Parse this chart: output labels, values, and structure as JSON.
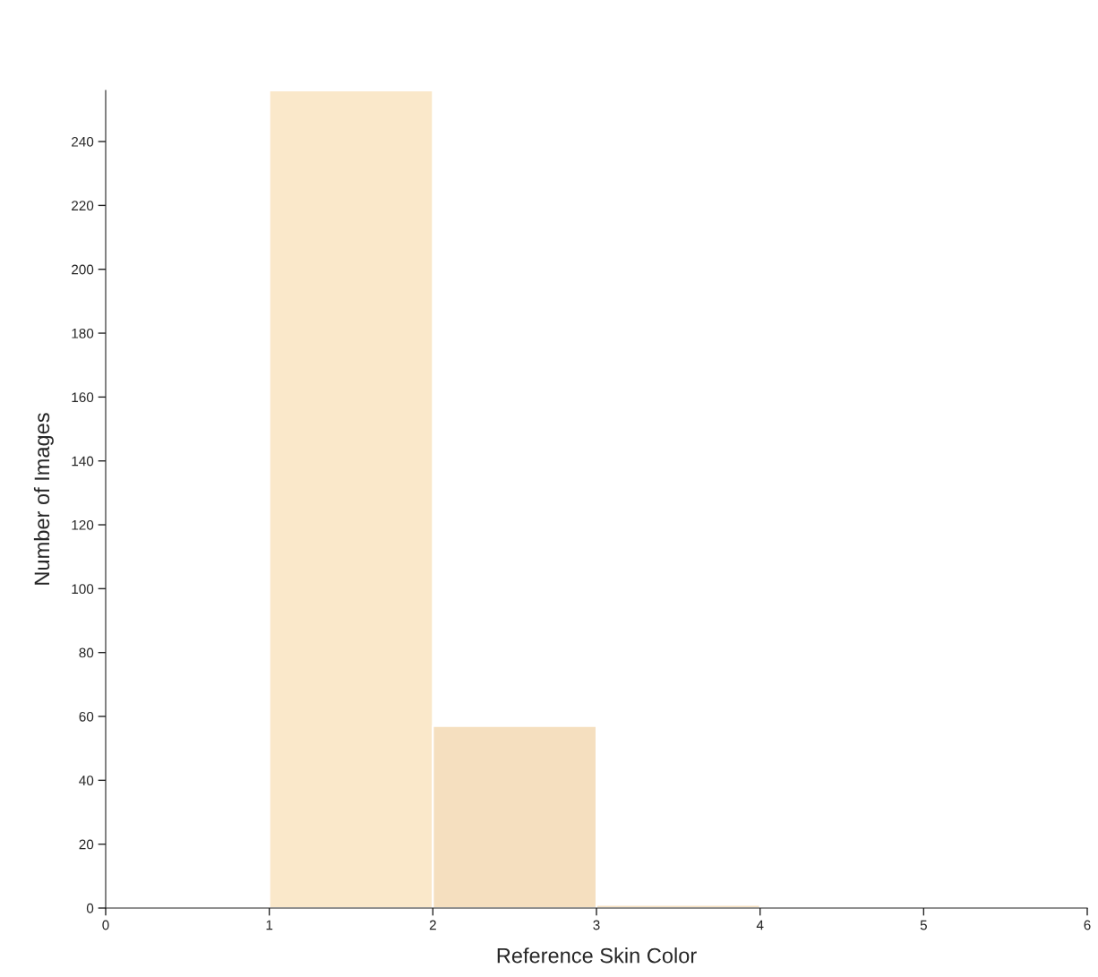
{
  "chart_data": {
    "type": "histogram",
    "xlabel": "Reference Skin Color",
    "ylabel": "Number of Images",
    "bins": [
      1,
      2,
      3,
      4
    ],
    "values": [
      256,
      57,
      1
    ],
    "colors": [
      "#fae8ca",
      "#f5dfbf",
      "#f5dfbf"
    ],
    "xlim": [
      0,
      6
    ],
    "xticks": [
      0,
      1,
      2,
      3,
      4,
      5,
      6
    ],
    "ylim": [
      0,
      256
    ],
    "yticks": [
      0,
      20,
      40,
      60,
      80,
      100,
      120,
      140,
      160,
      180,
      200,
      220,
      240
    ],
    "grid": false
  }
}
